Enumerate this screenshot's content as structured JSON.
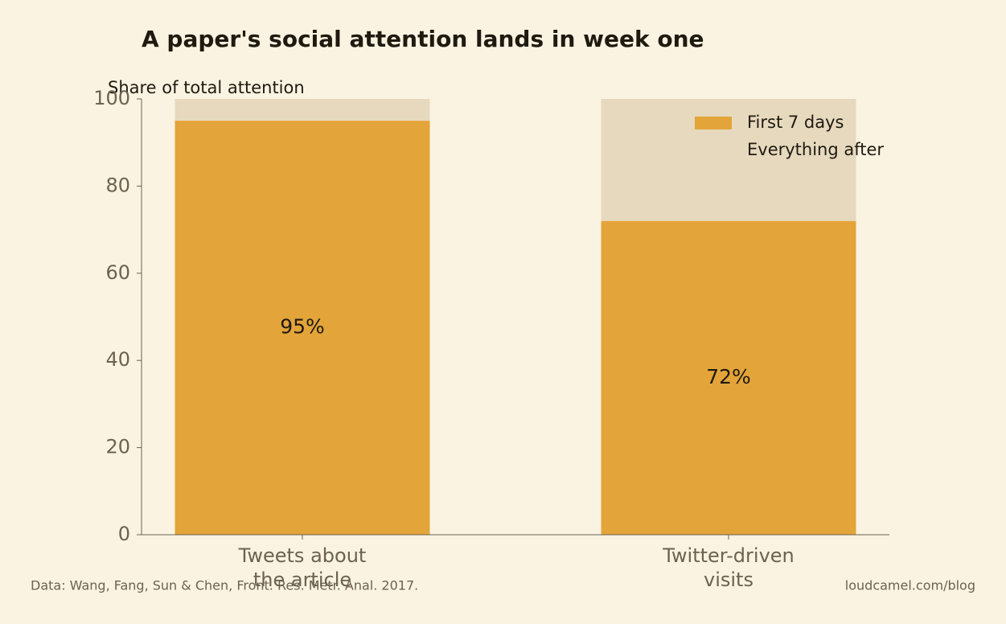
{
  "chart_data": {
    "type": "stacked_bar",
    "title": "A paper's social attention lands in week one",
    "y_label": "Share of total attention",
    "categories": [
      "Tweets about\nthe article",
      "Twitter-driven\nvisits"
    ],
    "series": [
      {
        "name": "First 7 days",
        "color": "#e3a43a",
        "values": [
          95,
          72
        ],
        "value_labels": [
          "95%",
          "72%"
        ]
      },
      {
        "name": "Everything after",
        "color": "#e6d9be",
        "values": [
          5,
          28
        ]
      }
    ],
    "ylim": [
      0,
      100
    ],
    "yticks": [
      0,
      20,
      40,
      60,
      80,
      100
    ],
    "legend": "upper right",
    "source": "Data: Wang, Fang, Sun & Chen, Front. Res. Metr. Anal. 2017.",
    "credit": "loudcamel.com/blog"
  }
}
